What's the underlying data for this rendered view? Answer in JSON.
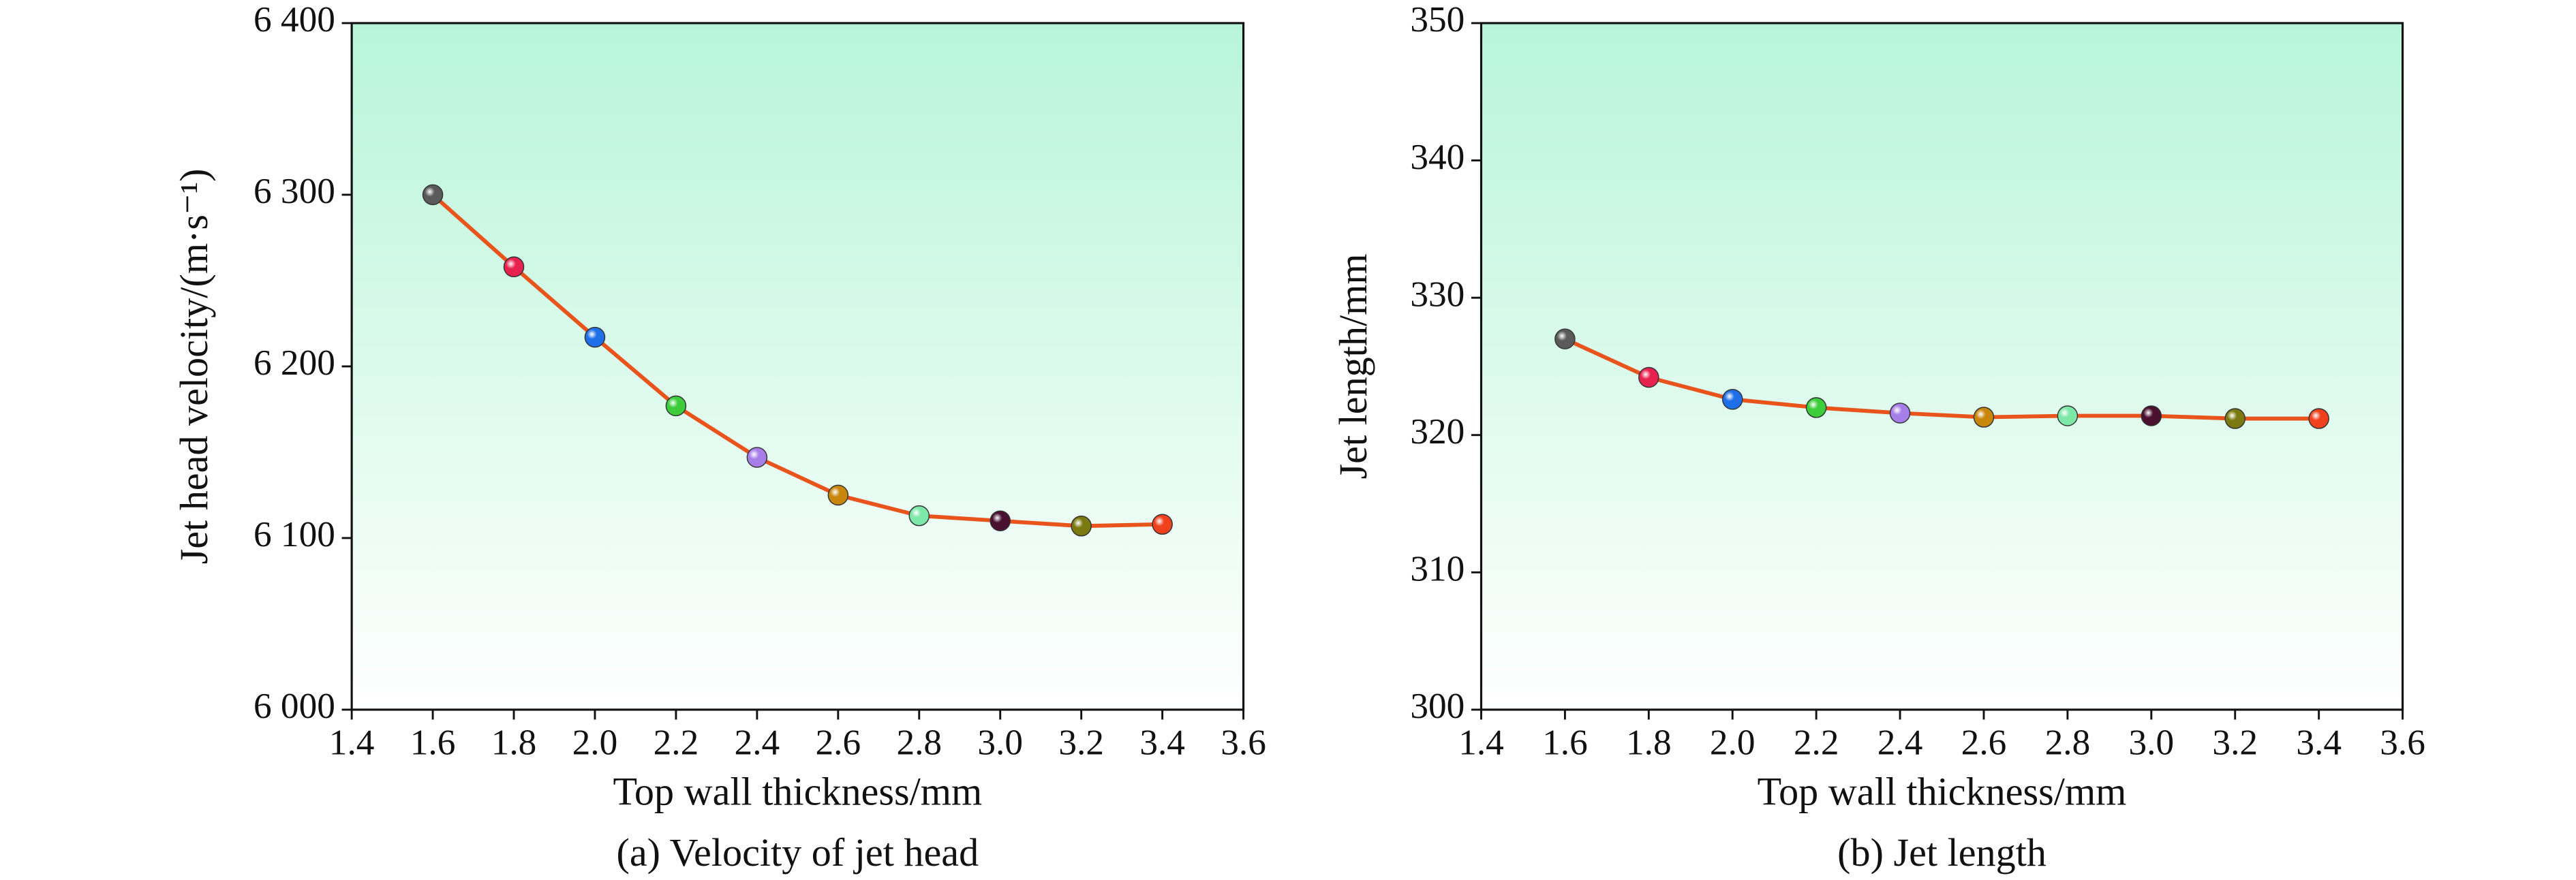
{
  "chart_data": [
    {
      "type": "line",
      "caption": "(a) Velocity of jet head",
      "xlabel": "Top wall thickness/mm",
      "ylabel": "Jet head velocity/(m·s⁻¹)",
      "x": [
        1.6,
        1.8,
        2.0,
        2.2,
        2.4,
        2.6,
        2.8,
        3.0,
        3.2,
        3.4
      ],
      "values": [
        6300,
        6258,
        6217,
        6177,
        6147,
        6125,
        6113,
        6110,
        6107,
        6108
      ],
      "color": "#e8541c",
      "marker_colors": [
        "#5a5a5a",
        "#e8224f",
        "#1e6fe8",
        "#3ccc3c",
        "#a77de8",
        "#c8860c",
        "#7de8a8",
        "#4a1030",
        "#7a7a10",
        "#f0401c"
      ],
      "xlim": [
        1.4,
        3.6
      ],
      "xticks": [
        1.4,
        1.6,
        1.8,
        {
          "value": 2,
          "label": "2.0"
        },
        2.2,
        2.4,
        2.6,
        2.8,
        {
          "value": 3,
          "label": "3.0"
        },
        3.2,
        3.4,
        3.6
      ],
      "ylim": [
        6000,
        6400
      ],
      "yticks": [
        {
          "value": 6000,
          "label": "6 000"
        },
        {
          "value": 6100,
          "label": "6 100"
        },
        {
          "value": 6200,
          "label": "6 200"
        },
        {
          "value": 6300,
          "label": "6 300"
        },
        {
          "value": 6400,
          "label": "6 400"
        }
      ],
      "background": [
        "#b8f5d8",
        "#ffffff"
      ]
    },
    {
      "type": "line",
      "caption": "(b) Jet length",
      "xlabel": "Top wall thickness/mm",
      "ylabel": "Jet length/mm",
      "x": [
        1.6,
        1.8,
        2.0,
        2.2,
        2.4,
        2.6,
        2.8,
        3.0,
        3.2,
        3.4
      ],
      "values": [
        327.0,
        324.2,
        322.6,
        322.0,
        321.6,
        321.3,
        321.4,
        321.4,
        321.2,
        321.2
      ],
      "color": "#e8541c",
      "marker_colors": [
        "#5a5a5a",
        "#e8224f",
        "#1e6fe8",
        "#3ccc3c",
        "#a77de8",
        "#c8860c",
        "#7de8a8",
        "#4a1030",
        "#7a7a10",
        "#f0401c"
      ],
      "xlim": [
        1.4,
        3.6
      ],
      "xticks": [
        1.4,
        1.6,
        1.8,
        {
          "value": 2,
          "label": "2.0"
        },
        2.2,
        2.4,
        2.6,
        2.8,
        {
          "value": 3,
          "label": "3.0"
        },
        3.2,
        3.4,
        3.6
      ],
      "ylim": [
        300,
        350
      ],
      "yticks": [
        300,
        310,
        320,
        330,
        340,
        350
      ],
      "background": [
        "#b8f5d8",
        "#ffffff"
      ]
    }
  ]
}
